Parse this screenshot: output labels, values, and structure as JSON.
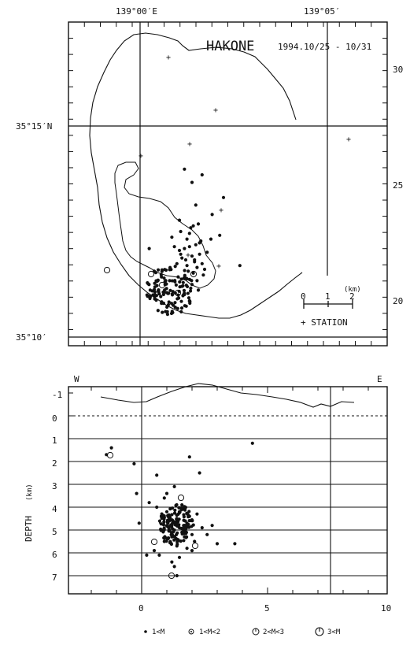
{
  "map": {
    "title": "HAKONE",
    "date_range": "1994.10/25 - 10/31",
    "lon_labels": [
      "139°00′E",
      "139°05′"
    ],
    "lat_labels": [
      "35°15′N",
      "35°10′"
    ],
    "right_ticks": [
      "30",
      "25",
      "20"
    ],
    "scale": {
      "unit": "(km)",
      "ticks": [
        "0",
        "1",
        "2"
      ]
    },
    "station_label": "+ STATION"
  },
  "section": {
    "west": "W",
    "east": "E",
    "depth_label": "DEPTH",
    "depth_unit": "(km)",
    "depth_ticks": [
      "-1",
      "0",
      "1",
      "2",
      "3",
      "4",
      "5",
      "6",
      "7"
    ],
    "x_ticks": [
      "0",
      "5",
      "10"
    ]
  },
  "legend": [
    {
      "symbol": "•",
      "label": "1<M"
    },
    {
      "symbol": "⊙",
      "label": "1<M<2"
    },
    {
      "symbol": "◯",
      "label": "2<M<3"
    },
    {
      "symbol": "◯",
      "label": "3<M"
    }
  ],
  "chart_data": [
    {
      "type": "scatter",
      "title": "HAKONE",
      "subtitle": "1994.10/25 - 10/31",
      "xlabel": "",
      "ylabel": "",
      "x_tick_labels": [
        "139°00′E",
        "139°05′"
      ],
      "y_tick_labels": [
        "35°15′N",
        "35°10′"
      ],
      "series": [
        {
          "x": [
            1.6,
            2.2,
            2.4,
            2.8,
            1.2,
            2.0,
            2.6,
            3.2,
            1.0,
            1.4,
            1.8,
            2.3,
            2.7,
            3.5,
            4.2,
            1.1,
            1.9,
            2.5,
            0.4,
            -1.4,
            -1.0,
            2.1,
            2.9,
            3.0,
            1.6,
            1.3,
            0.9,
            2.4,
            2.0,
            1.7,
            1.5,
            2.2,
            2.6,
            1.8,
            1.1,
            0.8,
            3.6,
            4.5,
            5.8,
            2.0,
            1.4,
            2.8,
            2.3,
            1.2,
            1.9,
            2.5,
            1.6,
            0.6,
            1.0,
            2.1
          ],
          "y": [
            1.2,
            1.4,
            1.1,
            1.3,
            1.6,
            1.7,
            1.8,
            1.9,
            2.0,
            2.1,
            2.2,
            2.3,
            2.5,
            2.6,
            2.8,
            3.0,
            3.2,
            3.4,
            2.7,
            2.1,
            0.9,
            0.8,
            0.7,
            1.0,
            0.5,
            0.3,
            0.6,
            0.4,
            0.2,
            0.9,
            1.5,
            1.5,
            2.4,
            2.9,
            1.8,
            1.3,
            3.9,
            4.8,
            1.2,
            5.6,
            6.3,
            6.0,
            4.4,
            0.1,
            0.0,
            -0.1,
            2.6,
            2.2,
            3.6,
            3.3
          ]
        }
      ]
    },
    {
      "type": "scatter",
      "xlabel": "",
      "ylabel": "DEPTH (km)",
      "xlim": [
        -3,
        10
      ],
      "ylim": [
        7.5,
        -1.5
      ],
      "series": [
        {
          "x": [
            -1.4,
            -1.2,
            -0.3,
            -0.2,
            -0.1,
            0.3,
            0.6,
            0.8,
            0.9,
            1.0,
            1.1,
            1.2,
            1.3,
            1.4,
            1.5,
            1.6,
            1.7,
            1.8,
            1.9,
            2.0,
            2.1,
            2.2,
            2.4,
            2.6,
            2.8,
            3.0,
            3.7,
            4.4,
            0.5,
            0.7,
            1.2,
            1.5,
            1.8,
            1.0,
            1.3,
            1.6,
            0.9,
            1.4,
            2.3,
            0.2,
            0.8,
            1.1,
            1.7,
            2.0,
            1.2,
            1.5,
            1.9,
            0.6,
            1.4,
            1.3
          ],
          "y": [
            1.7,
            1.4,
            2.1,
            3.4,
            4.7,
            3.8,
            4.0,
            4.4,
            3.6,
            4.2,
            4.5,
            4.8,
            5.0,
            4.6,
            4.9,
            5.1,
            5.3,
            4.7,
            4.4,
            5.2,
            5.5,
            4.3,
            4.9,
            5.2,
            4.8,
            5.6,
            5.6,
            1.2,
            5.9,
            6.1,
            6.4,
            6.2,
            5.8,
            3.4,
            3.1,
            3.9,
            5.5,
            5.7,
            2.5,
            6.1,
            5.0,
            4.6,
            4.1,
            5.9,
            5.3,
            4.2,
            1.8,
            2.6,
            7.0,
            6.6
          ]
        }
      ]
    }
  ]
}
